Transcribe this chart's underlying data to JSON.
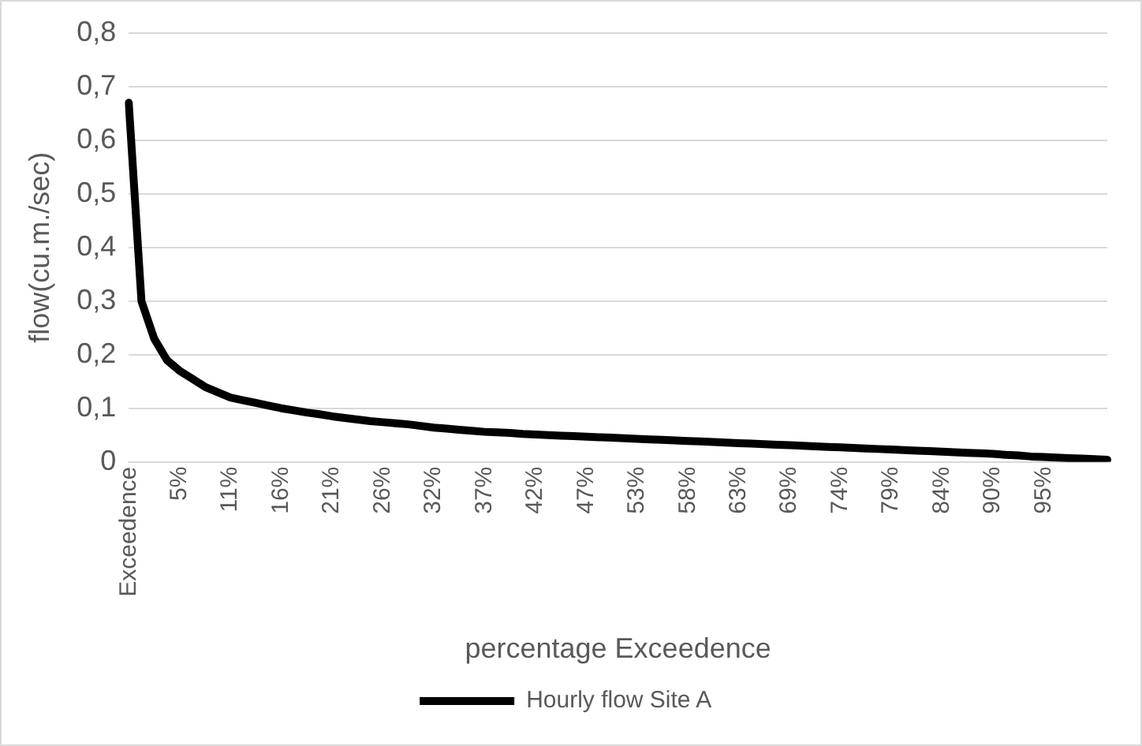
{
  "chart_data": {
    "type": "line",
    "xlabel": "percentage Exceedence",
    "ylabel": "flow(cu.m./sec)",
    "categories": [
      "Exceedence",
      null,
      null,
      null,
      "5%",
      null,
      null,
      null,
      "11%",
      null,
      null,
      null,
      "16%",
      null,
      null,
      null,
      "21%",
      null,
      null,
      null,
      "26%",
      null,
      null,
      null,
      "32%",
      null,
      null,
      null,
      "37%",
      null,
      null,
      null,
      "42%",
      null,
      null,
      null,
      "47%",
      null,
      null,
      null,
      "53%",
      null,
      null,
      null,
      "58%",
      null,
      null,
      null,
      "63%",
      null,
      null,
      null,
      "69%",
      null,
      null,
      null,
      "74%",
      null,
      null,
      null,
      "79%",
      null,
      null,
      null,
      "84%",
      null,
      null,
      null,
      "90%",
      null,
      null,
      null,
      "95%",
      null,
      null,
      null,
      null,
      null
    ],
    "series": [
      {
        "name": "Hourly flow Site A",
        "color": "#000000",
        "values": [
          0.67,
          0.3,
          0.23,
          0.19,
          0.17,
          0.155,
          0.14,
          0.13,
          0.12,
          0.115,
          0.11,
          0.105,
          0.1,
          0.096,
          0.092,
          0.089,
          0.085,
          0.082,
          0.079,
          0.076,
          0.074,
          0.072,
          0.07,
          0.067,
          0.064,
          0.062,
          0.06,
          0.058,
          0.056,
          0.055,
          0.054,
          0.052,
          0.051,
          0.05,
          0.049,
          0.048,
          0.047,
          0.046,
          0.045,
          0.044,
          0.043,
          0.042,
          0.041,
          0.04,
          0.039,
          0.038,
          0.037,
          0.036,
          0.035,
          0.034,
          0.033,
          0.032,
          0.031,
          0.03,
          0.029,
          0.028,
          0.027,
          0.026,
          0.025,
          0.024,
          0.023,
          0.022,
          0.021,
          0.02,
          0.019,
          0.018,
          0.017,
          0.016,
          0.015,
          0.013,
          0.012,
          0.01,
          0.009,
          0.008,
          0.007,
          0.006,
          0.005,
          0.004
        ]
      }
    ],
    "ylim": [
      0,
      0.8
    ],
    "yticks": [
      {
        "value": 0,
        "label": "0"
      },
      {
        "value": 0.1,
        "label": "0,1"
      },
      {
        "value": 0.2,
        "label": "0,2"
      },
      {
        "value": 0.3,
        "label": "0,3"
      },
      {
        "value": 0.4,
        "label": "0,4"
      },
      {
        "value": 0.5,
        "label": "0,5"
      },
      {
        "value": 0.6,
        "label": "0,6"
      },
      {
        "value": 0.7,
        "label": "0,7"
      },
      {
        "value": 0.8,
        "label": "0,8"
      }
    ],
    "grid": "y",
    "legend": "bottom",
    "marker": "none",
    "line_style": "solid"
  }
}
